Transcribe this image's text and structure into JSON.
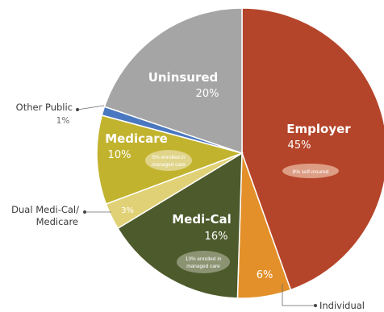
{
  "chart_data": {
    "type": "pie",
    "slices": [
      {
        "label": "Employer",
        "value": 45,
        "pct_label": "45%",
        "color": "#b5452a",
        "note": "8% self-insured",
        "note_color": "#dd9d85"
      },
      {
        "label": "Individual",
        "value": 6,
        "pct_label": "6%",
        "color": "#e3902a"
      },
      {
        "label": "Medi-Cal",
        "value": 16,
        "pct_label": "16%",
        "color": "#4d5a2b",
        "note": [
          "13% enrolled in",
          "managed care"
        ],
        "note_color": "#8b9373"
      },
      {
        "label": "Dual Medi-Cal/ Medicare",
        "value": 3,
        "pct_label": "3%",
        "color": "#e1d176"
      },
      {
        "label": "Medicare",
        "value": 10,
        "pct_label": "10%",
        "color": "#c2b32f",
        "note": [
          "5% enrolled in",
          "managed care"
        ],
        "note_color": "#e0d48a"
      },
      {
        "label": "Other Public",
        "value": 1,
        "pct_label": "1%",
        "color": "#4a78c0"
      },
      {
        "label": "Uninsured",
        "value": 20,
        "pct_label": "20%",
        "color": "#a5a5a5"
      }
    ],
    "callouts": {
      "other_public": {
        "line1": "Other Public",
        "line2": "1%"
      },
      "dual": {
        "line1": "Dual Medi-Cal/",
        "line2": "Medicare"
      },
      "individual": {
        "line1": "Individual"
      }
    }
  }
}
